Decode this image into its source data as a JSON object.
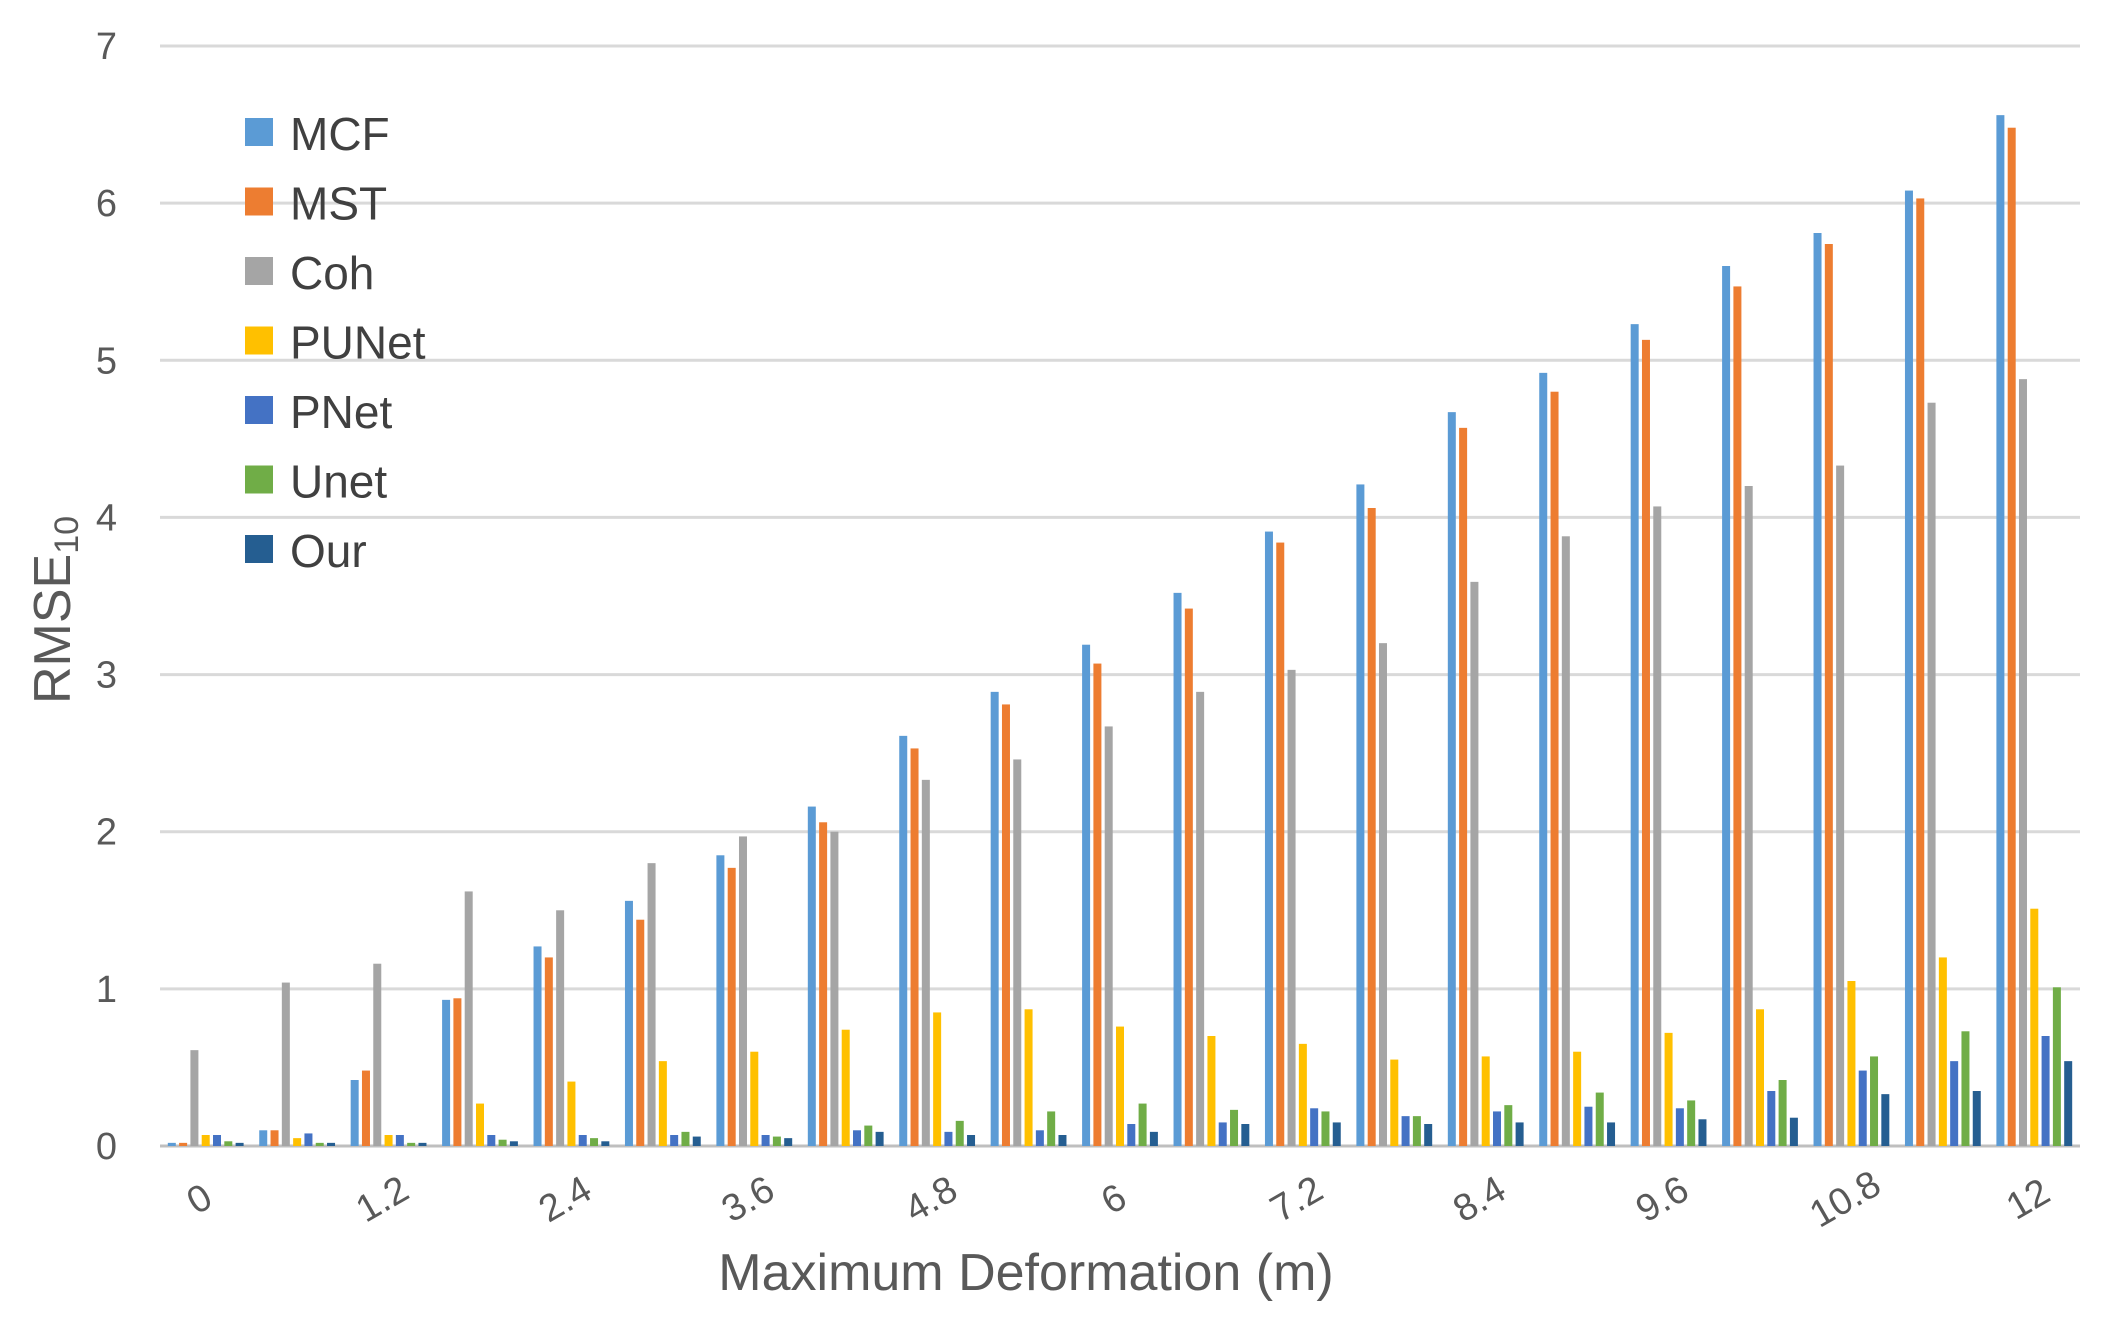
{
  "chart_data": {
    "type": "bar",
    "xlabel": "Maximum Deformation (m)",
    "ylabel": "RMSE",
    "ylabel_subscript": "10",
    "ylim": [
      0,
      7
    ],
    "y_ticks": [
      "0",
      "1",
      "2",
      "3",
      "4",
      "5",
      "6",
      "7"
    ],
    "grid": true,
    "legend_position": "top-left",
    "x_tick_rotation": -30,
    "categories": [
      "0",
      "0.6",
      "1.2",
      "1.8",
      "2.4",
      "3",
      "3.6",
      "4.2",
      "4.8",
      "5.4",
      "6",
      "6.6",
      "7.2",
      "7.8",
      "8.4",
      "9",
      "9.6",
      "10.2",
      "10.8",
      "11.4",
      "12"
    ],
    "x_tick_labels": [
      "0",
      "",
      "1.2",
      "",
      "2.4",
      "",
      "3.6",
      "",
      "4.8",
      "",
      "6",
      "",
      "7.2",
      "",
      "8.4",
      "",
      "9.6",
      "",
      "10.8",
      "",
      "12"
    ],
    "series": [
      {
        "name": "MCF",
        "color": "#5b9bd5",
        "values": [
          0.02,
          0.1,
          0.42,
          0.93,
          1.27,
          1.56,
          1.85,
          2.16,
          2.61,
          2.89,
          3.19,
          3.52,
          3.91,
          4.21,
          4.67,
          4.92,
          5.23,
          5.6,
          5.81,
          6.08,
          6.56
        ]
      },
      {
        "name": "MST",
        "color": "#ed7d31",
        "values": [
          0.02,
          0.1,
          0.48,
          0.94,
          1.2,
          1.44,
          1.77,
          2.06,
          2.53,
          2.81,
          3.07,
          3.42,
          3.84,
          4.06,
          4.57,
          4.8,
          5.13,
          5.47,
          5.74,
          6.03,
          6.48
        ]
      },
      {
        "name": "Coh",
        "color": "#a5a5a5",
        "values": [
          0.61,
          1.04,
          1.16,
          1.62,
          1.5,
          1.8,
          1.97,
          2.0,
          2.33,
          2.46,
          2.67,
          2.89,
          3.03,
          3.2,
          3.59,
          3.88,
          4.07,
          4.2,
          4.33,
          4.73,
          4.88
        ]
      },
      {
        "name": "PUNet",
        "color": "#ffc000",
        "values": [
          0.07,
          0.05,
          0.07,
          0.27,
          0.41,
          0.54,
          0.6,
          0.74,
          0.85,
          0.87,
          0.76,
          0.7,
          0.65,
          0.55,
          0.57,
          0.6,
          0.72,
          0.87,
          1.05,
          1.2,
          1.51
        ]
      },
      {
        "name": "PNet",
        "color": "#4472c4",
        "values": [
          0.07,
          0.08,
          0.07,
          0.07,
          0.07,
          0.07,
          0.07,
          0.1,
          0.09,
          0.1,
          0.14,
          0.15,
          0.24,
          0.19,
          0.22,
          0.25,
          0.24,
          0.35,
          0.48,
          0.54,
          0.7
        ]
      },
      {
        "name": "Unet",
        "color": "#70ad47",
        "values": [
          0.03,
          0.02,
          0.02,
          0.04,
          0.05,
          0.09,
          0.06,
          0.13,
          0.16,
          0.22,
          0.27,
          0.23,
          0.22,
          0.19,
          0.26,
          0.34,
          0.29,
          0.42,
          0.57,
          0.73,
          1.01
        ]
      },
      {
        "name": "Our",
        "color": "#255e91",
        "values": [
          0.02,
          0.02,
          0.02,
          0.03,
          0.03,
          0.06,
          0.05,
          0.09,
          0.07,
          0.07,
          0.09,
          0.14,
          0.15,
          0.14,
          0.15,
          0.15,
          0.17,
          0.18,
          0.33,
          0.35,
          0.54
        ]
      }
    ]
  }
}
